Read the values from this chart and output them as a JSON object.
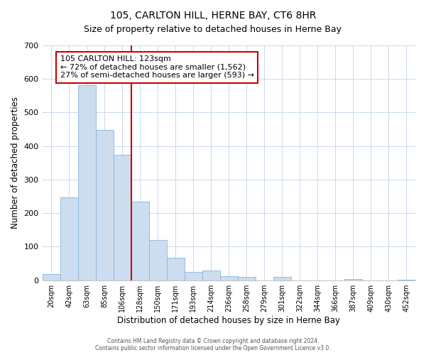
{
  "title": "105, CARLTON HILL, HERNE BAY, CT6 8HR",
  "subtitle": "Size of property relative to detached houses in Herne Bay",
  "xlabel": "Distribution of detached houses by size in Herne Bay",
  "ylabel": "Number of detached properties",
  "bar_labels": [
    "20sqm",
    "42sqm",
    "63sqm",
    "85sqm",
    "106sqm",
    "128sqm",
    "150sqm",
    "171sqm",
    "193sqm",
    "214sqm",
    "236sqm",
    "258sqm",
    "279sqm",
    "301sqm",
    "322sqm",
    "344sqm",
    "366sqm",
    "387sqm",
    "409sqm",
    "430sqm",
    "452sqm"
  ],
  "bar_values": [
    18,
    246,
    582,
    449,
    375,
    235,
    120,
    67,
    24,
    30,
    13,
    10,
    0,
    9,
    0,
    0,
    0,
    4,
    0,
    0,
    2
  ],
  "bar_color": "#ccddf0",
  "bar_edge_color": "#8ab4d8",
  "property_line_color": "#cc0000",
  "ylim": [
    0,
    700
  ],
  "yticks": [
    0,
    100,
    200,
    300,
    400,
    500,
    600,
    700
  ],
  "annotation_title": "105 CARLTON HILL: 123sqm",
  "annotation_line1": "← 72% of detached houses are smaller (1,562)",
  "annotation_line2": "27% of semi-detached houses are larger (593) →",
  "annotation_box_color": "#ffffff",
  "annotation_box_edge": "#cc0000",
  "footer1": "Contains HM Land Registry data © Crown copyright and database right 2024.",
  "footer2": "Contains public sector information licensed under the Open Government Licence v3.0.",
  "background_color": "#ffffff",
  "grid_color": "#c8d8ec",
  "title_fontsize": 10,
  "subtitle_fontsize": 9
}
